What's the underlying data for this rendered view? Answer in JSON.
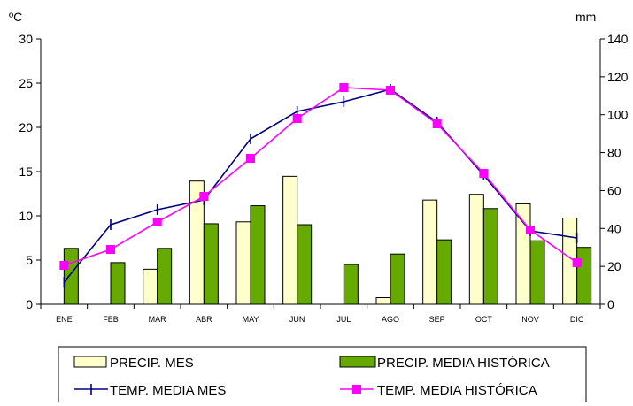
{
  "chart_data": {
    "type": "bar-line-combo",
    "categories": [
      "ENE",
      "FEB",
      "MAR",
      "ABR",
      "MAY",
      "JUN",
      "JUL",
      "AGO",
      "SEP",
      "OCT",
      "NOV",
      "DIC"
    ],
    "left_axis": {
      "unit": "ºC",
      "ylim": [
        0,
        30
      ],
      "ticks": [
        "0",
        "5",
        "10",
        "15",
        "20",
        "25",
        "30"
      ]
    },
    "right_axis": {
      "unit": "mm",
      "ylim": [
        0,
        140
      ],
      "ticks": [
        "0",
        "20",
        "40",
        "60",
        "80",
        "100",
        "120",
        "140"
      ]
    },
    "bar_series": [
      {
        "name": "PRECIP. MES",
        "axis": "right",
        "color": "#ffffcc",
        "values": [
          0,
          0,
          18.5,
          65,
          43.5,
          67.5,
          0,
          3.5,
          55,
          58,
          53,
          45.5
        ]
      },
      {
        "name": "PRECIP. MEDIA HISTÓRICA",
        "axis": "right",
        "color": "#66aa00",
        "values": [
          29.5,
          22,
          29.5,
          42.5,
          52,
          42,
          21,
          26.5,
          34,
          50.5,
          33.5,
          30
        ]
      }
    ],
    "line_series": [
      {
        "name": "TEMP. MEDIA MES",
        "axis": "left",
        "color": "#000080",
        "marker": "plus",
        "values": [
          2.5,
          9,
          10.7,
          11.8,
          18.7,
          21.8,
          22.9,
          24.3,
          20.6,
          14.6,
          8.3,
          7.5
        ]
      },
      {
        "name": "TEMP. MEDIA HISTÓRICA",
        "axis": "left",
        "color": "#ff00ff",
        "marker": "square",
        "values": [
          4.4,
          6.2,
          9.3,
          12.2,
          16.5,
          21,
          24.5,
          24.2,
          20.4,
          14.8,
          8.4,
          4.7
        ]
      }
    ],
    "legend_position": "bottom",
    "grid": false
  }
}
